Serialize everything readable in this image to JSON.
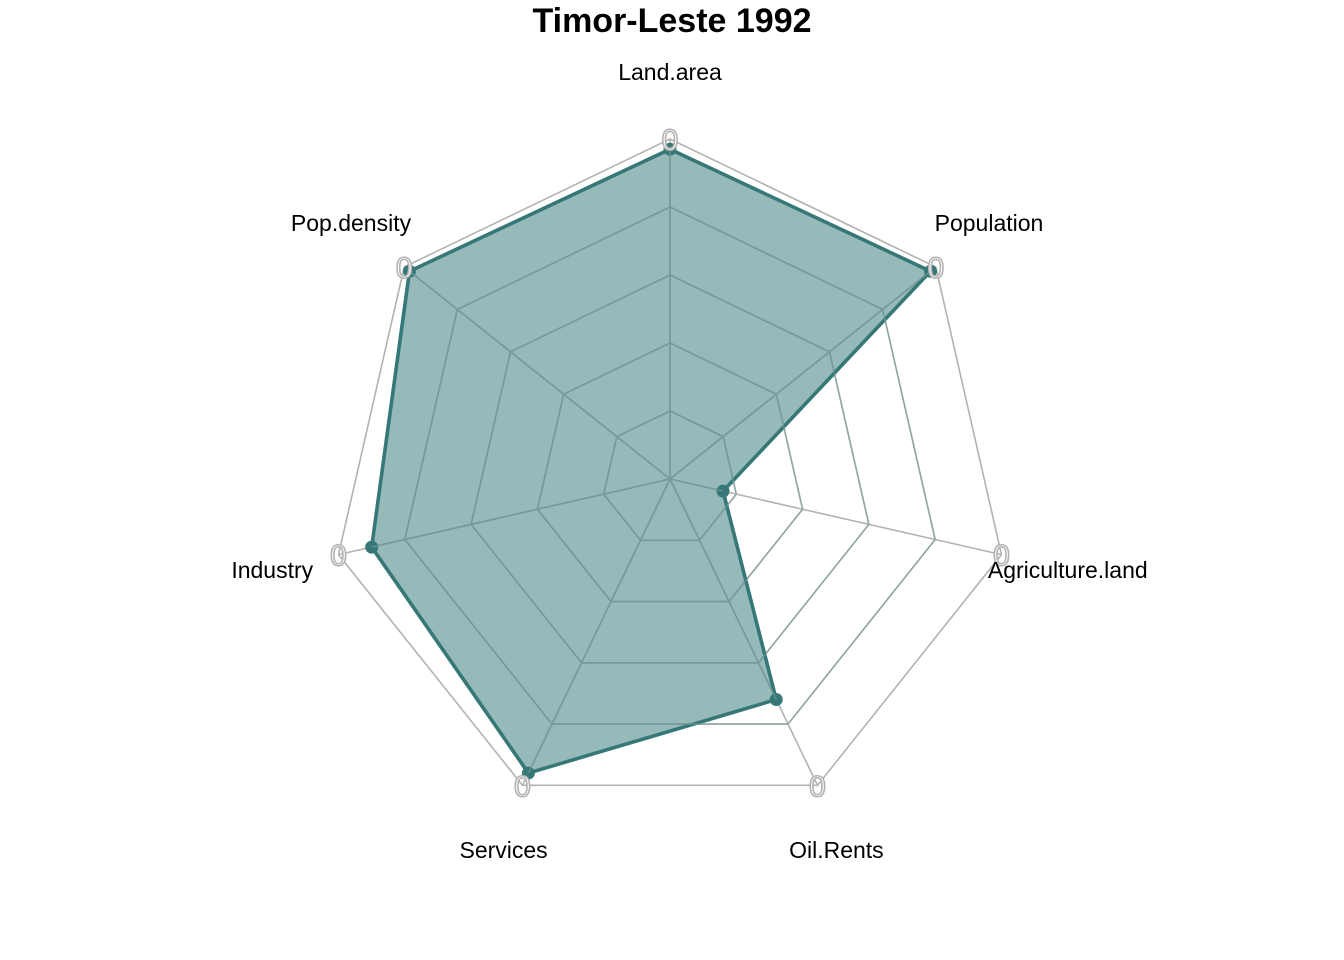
{
  "chart_data": {
    "type": "radar",
    "title": "Timor-Leste 1992",
    "axes": [
      "Land.area",
      "Population",
      "Agriculture.land",
      "Oil.Rents",
      "Services",
      "Industry",
      "Pop.density"
    ],
    "tick_labels": [
      "0",
      "0",
      "0",
      "0",
      "0",
      "0",
      "0"
    ],
    "rmax": 1.0,
    "grid_levels": [
      0.2,
      0.4,
      0.6,
      0.8,
      1.0
    ],
    "series": [
      {
        "values": [
          0.97,
          0.98,
          0.16,
          0.72,
          0.96,
          0.9,
          0.98
        ]
      }
    ],
    "colors": {
      "series_line": "#367878",
      "series_fill": "#367878",
      "outer_grid": "#b3b3b3",
      "inner_grid": "#7a9c9c"
    },
    "grid": true
  }
}
